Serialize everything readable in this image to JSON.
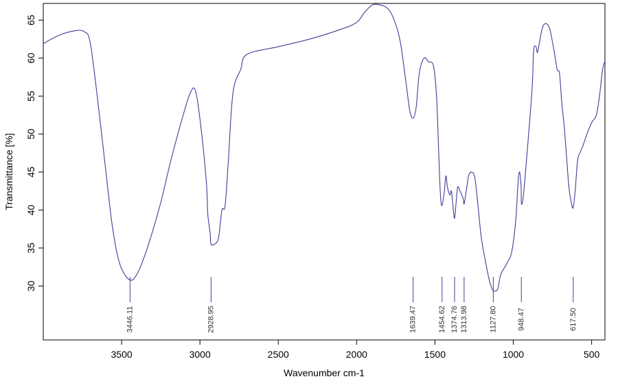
{
  "chart_data": {
    "type": "line",
    "title": "",
    "xlabel": "Wavenumber cm-1",
    "ylabel": "Transmittance [%]",
    "xlim": [
      4000,
      415
    ],
    "ylim": [
      22.9,
      67.2
    ],
    "x_reversed": true,
    "grid": false,
    "colors": {
      "line": "#3d3d9a",
      "peak": "#3d3d9a"
    },
    "x_ticks": [
      3500,
      3000,
      2500,
      2000,
      1500,
      1000,
      500
    ],
    "x_tick_labels": [
      "3500",
      "3000",
      "2500",
      "2000",
      "1500",
      "1000",
      "500"
    ],
    "y_ticks": [
      30,
      35,
      40,
      45,
      50,
      55,
      60,
      65
    ],
    "y_tick_labels": [
      "30",
      "35",
      "40",
      "45",
      "50",
      "55",
      "60",
      "65"
    ],
    "peaks": [
      {
        "x": 3446.11,
        "label": "3446.11"
      },
      {
        "x": 2928.95,
        "label": "2928.95"
      },
      {
        "x": 1639.47,
        "label": "1639.47"
      },
      {
        "x": 1454.62,
        "label": "1454.62"
      },
      {
        "x": 1374.76,
        "label": "1374.76"
      },
      {
        "x": 1313.98,
        "label": "1313.98"
      },
      {
        "x": 1127.8,
        "label": "1127.80"
      },
      {
        "x": 948.47,
        "label": "948.47"
      },
      {
        "x": 617.5,
        "label": "617.50"
      }
    ],
    "series": [
      {
        "points": [
          [
            4000,
            61.9
          ],
          [
            3900,
            63.0
          ],
          [
            3800,
            63.6
          ],
          [
            3740,
            63.5
          ],
          [
            3700,
            62.0
          ],
          [
            3650,
            54.0
          ],
          [
            3600,
            45.0
          ],
          [
            3560,
            38.0
          ],
          [
            3520,
            33.5
          ],
          [
            3480,
            31.5
          ],
          [
            3446,
            30.8
          ],
          [
            3420,
            31.0
          ],
          [
            3380,
            32.5
          ],
          [
            3320,
            36.0
          ],
          [
            3250,
            41.0
          ],
          [
            3180,
            47.0
          ],
          [
            3100,
            53.0
          ],
          [
            3060,
            55.5
          ],
          [
            3030,
            55.8
          ],
          [
            3000,
            52.0
          ],
          [
            2960,
            44.0
          ],
          [
            2950,
            39.5
          ],
          [
            2935,
            37.0
          ],
          [
            2929,
            35.5
          ],
          [
            2900,
            35.6
          ],
          [
            2880,
            36.5
          ],
          [
            2860,
            40.0
          ],
          [
            2840,
            40.5
          ],
          [
            2820,
            46.0
          ],
          [
            2800,
            53.0
          ],
          [
            2780,
            56.5
          ],
          [
            2740,
            58.5
          ],
          [
            2700,
            60.5
          ],
          [
            2500,
            61.5
          ],
          [
            2300,
            62.5
          ],
          [
            2100,
            63.8
          ],
          [
            2000,
            64.7
          ],
          [
            1950,
            66.0
          ],
          [
            1900,
            67.0
          ],
          [
            1850,
            67.0
          ],
          [
            1800,
            66.5
          ],
          [
            1760,
            65.0
          ],
          [
            1720,
            62.0
          ],
          [
            1680,
            56.0
          ],
          [
            1660,
            53.0
          ],
          [
            1640,
            52.1
          ],
          [
            1620,
            53.5
          ],
          [
            1600,
            58.0
          ],
          [
            1570,
            60.0
          ],
          [
            1540,
            59.5
          ],
          [
            1510,
            59.0
          ],
          [
            1490,
            55.0
          ],
          [
            1475,
            47.0
          ],
          [
            1465,
            42.0
          ],
          [
            1455,
            40.6
          ],
          [
            1440,
            42.5
          ],
          [
            1430,
            44.5
          ],
          [
            1420,
            43.0
          ],
          [
            1405,
            42.0
          ],
          [
            1395,
            42.5
          ],
          [
            1385,
            40.5
          ],
          [
            1375,
            38.9
          ],
          [
            1365,
            41.0
          ],
          [
            1355,
            43.0
          ],
          [
            1340,
            42.5
          ],
          [
            1320,
            41.5
          ],
          [
            1314,
            40.8
          ],
          [
            1300,
            42.5
          ],
          [
            1285,
            44.5
          ],
          [
            1265,
            45.0
          ],
          [
            1245,
            44.2
          ],
          [
            1225,
            40.5
          ],
          [
            1205,
            36.5
          ],
          [
            1180,
            33.5
          ],
          [
            1150,
            30.5
          ],
          [
            1128,
            29.4
          ],
          [
            1100,
            29.6
          ],
          [
            1080,
            31.5
          ],
          [
            1040,
            33.0
          ],
          [
            1010,
            34.5
          ],
          [
            985,
            38.5
          ],
          [
            970,
            43.5
          ],
          [
            960,
            45.0
          ],
          [
            950,
            43.0
          ],
          [
            948,
            40.8
          ],
          [
            935,
            42.0
          ],
          [
            910,
            48.0
          ],
          [
            880,
            56.0
          ],
          [
            870,
            61.0
          ],
          [
            855,
            61.5
          ],
          [
            845,
            60.8
          ],
          [
            820,
            63.5
          ],
          [
            800,
            64.5
          ],
          [
            770,
            64.0
          ],
          [
            740,
            61.0
          ],
          [
            720,
            58.5
          ],
          [
            705,
            58.0
          ],
          [
            690,
            54.0
          ],
          [
            675,
            51.0
          ],
          [
            660,
            47.0
          ],
          [
            645,
            43.0
          ],
          [
            630,
            41.0
          ],
          [
            618,
            40.3
          ],
          [
            605,
            42.5
          ],
          [
            590,
            46.5
          ],
          [
            575,
            47.5
          ],
          [
            555,
            48.5
          ],
          [
            530,
            50.0
          ],
          [
            500,
            51.5
          ],
          [
            470,
            52.5
          ],
          [
            450,
            55.0
          ],
          [
            430,
            58.5
          ],
          [
            415,
            59.6
          ]
        ]
      }
    ]
  }
}
